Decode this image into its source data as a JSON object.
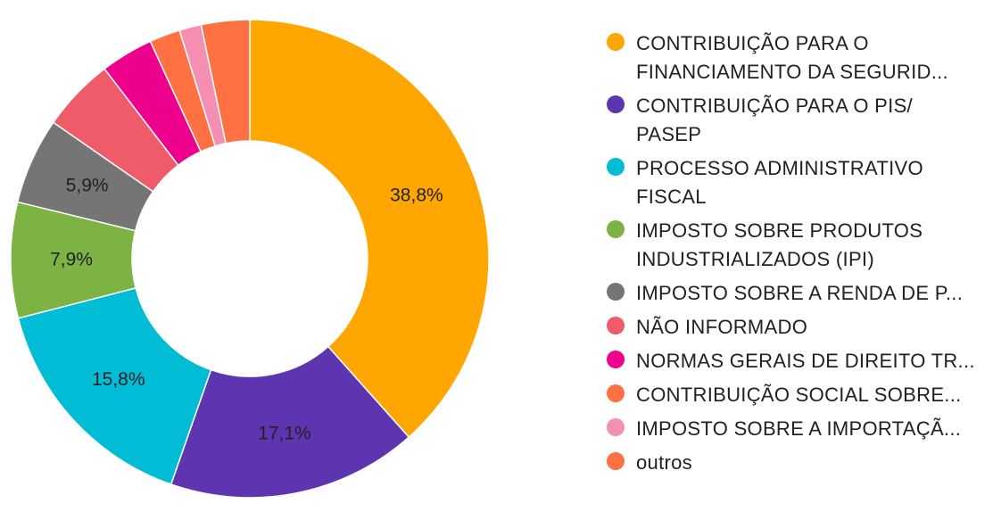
{
  "chart_data": {
    "type": "pie",
    "donut": true,
    "categories": [
      "CONTRIBUIÇÃO PARA O FINANCIAMENTO DA SEGURID...",
      "CONTRIBUIÇÃO PARA O PIS/ PASEP",
      "PROCESSO ADMINISTRATIVO FISCAL",
      "IMPOSTO SOBRE PRODUTOS INDUSTRIALIZADOS (IPI)",
      "IMPOSTO SOBRE A RENDA DE P...",
      "NÃO INFORMADO",
      "NORMAS GERAIS DE DIREITO TR...",
      "CONTRIBUIÇÃO SOCIAL SOBRE...",
      "IMPOSTO SOBRE A IMPORTAÇÃ...",
      "outros"
    ],
    "values": [
      38.8,
      17.1,
      15.8,
      7.9,
      5.9,
      5.0,
      3.6,
      2.1,
      1.5,
      3.3
    ],
    "data_labels": [
      "38,8%",
      "17,1%",
      "15,8%",
      "7,9%",
      "5,9%",
      "",
      "",
      "",
      "",
      ""
    ],
    "label_colors": [
      "#212121",
      "#d8d8ee",
      "#212121",
      "#212121",
      "#212121",
      "",
      "",
      "",
      "",
      ""
    ],
    "colors": [
      "#FFA600",
      "#5E35B1",
      "#00BCD4",
      "#7CB342",
      "#757575",
      "#EF5B68",
      "#EC008C",
      "#FF7043",
      "#F48FB1",
      "#FF7043"
    ],
    "legend_position": "right",
    "title": ""
  },
  "legend": {
    "items": [
      {
        "label": "CONTRIBUIÇÃO PARA O FINANCIAMENTO DA SEGURID...",
        "color": "#FFA600"
      },
      {
        "label": "CONTRIBUIÇÃO PARA O PIS/ PASEP",
        "color": "#5E35B1"
      },
      {
        "label": "PROCESSO ADMINISTRATIVO FISCAL",
        "color": "#00BCD4"
      },
      {
        "label": "IMPOSTO SOBRE PRODUTOS INDUSTRIALIZADOS (IPI)",
        "color": "#7CB342"
      },
      {
        "label": "IMPOSTO SOBRE A RENDA DE P...",
        "color": "#757575"
      },
      {
        "label": "NÃO INFORMADO",
        "color": "#EF5B68"
      },
      {
        "label": "NORMAS GERAIS DE DIREITO TR...",
        "color": "#EC008C"
      },
      {
        "label": "CONTRIBUIÇÃO SOCIAL SOBRE...",
        "color": "#FF7043"
      },
      {
        "label": "IMPOSTO SOBRE A IMPORTAÇÃ...",
        "color": "#F48FB1"
      },
      {
        "label": "outros",
        "color": "#FF7043"
      }
    ]
  }
}
